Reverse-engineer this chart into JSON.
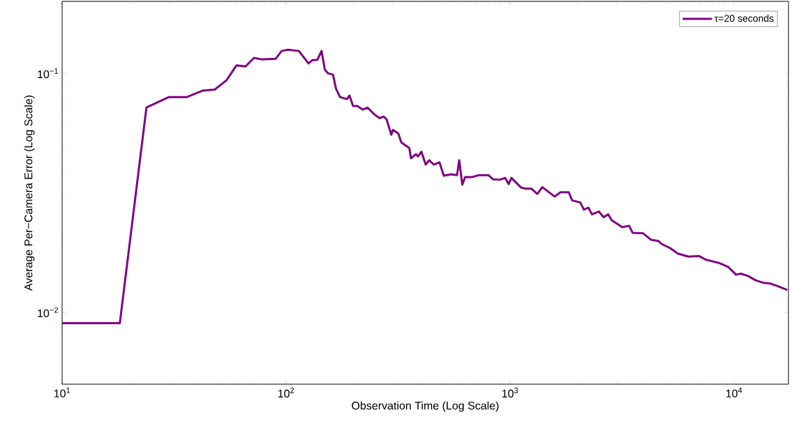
{
  "chart_data": {
    "type": "line",
    "xlabel": "Observation Time (Log Scale)",
    "ylabel": "Average Per−Camera Error (Log Scale)",
    "log": "xy",
    "legend": "top right",
    "xlim": [
      10,
      17500
    ],
    "ylim": [
      0.005,
      0.2
    ],
    "xticks": [
      {
        "value": 10,
        "label": "10$^{1}$"
      },
      {
        "value": 100,
        "label": "10$^{2}$"
      },
      {
        "value": 1000,
        "label": "10$^{3}$"
      },
      {
        "value": 10000,
        "label": "10$^{4}$"
      }
    ],
    "yticks": [
      {
        "value": 0.01,
        "label": "10$^{−2}$"
      },
      {
        "value": 0.1,
        "label": "10$^{−1}$"
      }
    ],
    "series": [
      {
        "name": "τ=20 seconds",
        "color": "#800080",
        "x": [
          10,
          18.1,
          23.8,
          30,
          36.1,
          42.3,
          48,
          54.2,
          60.1,
          65.9,
          71.9,
          77.8,
          89.8,
          95.5,
          102,
          114,
          126,
          131,
          138,
          144,
          149,
          154,
          162,
          167,
          174,
          187,
          192,
          199,
          208,
          220,
          231,
          248,
          261,
          273,
          281,
          295,
          300,
          317,
          327,
          343,
          355,
          361,
          380,
          388,
          402,
          420,
          436,
          456,
          484,
          506,
          546,
          580,
          593,
          612,
          630,
          678,
          728,
          800,
          840,
          902,
          951,
          986,
          1014,
          1119,
          1173,
          1245,
          1323,
          1393,
          1491,
          1581,
          1679,
          1828,
          1893,
          2059,
          2135,
          2239,
          2321,
          2493,
          2615,
          2742,
          2842,
          3165,
          3402,
          3526,
          3925,
          4266,
          4584,
          4755,
          5167,
          5620,
          6256,
          6960,
          7485,
          8535,
          9397,
          10210,
          10720,
          11520,
          12520,
          13460,
          14460,
          15530,
          17290
        ],
        "values": [
          0.009,
          0.009,
          0.072,
          0.0796,
          0.0796,
          0.0846,
          0.0855,
          0.0935,
          0.108,
          0.1069,
          0.116,
          0.1144,
          0.115,
          0.124,
          0.1256,
          0.124,
          0.11,
          0.1135,
          0.114,
          0.124,
          0.1035,
          0.1,
          0.0987,
          0.0863,
          0.0796,
          0.078,
          0.0807,
          0.073,
          0.073,
          0.0705,
          0.0719,
          0.0673,
          0.065,
          0.0659,
          0.0642,
          0.0553,
          0.058,
          0.056,
          0.0514,
          0.0498,
          0.0487,
          0.0441,
          0.0459,
          0.0449,
          0.047,
          0.0415,
          0.0433,
          0.0415,
          0.0424,
          0.0373,
          0.0378,
          0.0375,
          0.0433,
          0.0342,
          0.0368,
          0.0368,
          0.0375,
          0.0375,
          0.036,
          0.0359,
          0.0365,
          0.0344,
          0.0365,
          0.0333,
          0.0329,
          0.0329,
          0.0313,
          0.0334,
          0.0318,
          0.0305,
          0.0318,
          0.0318,
          0.0294,
          0.0288,
          0.0269,
          0.0274,
          0.0257,
          0.0264,
          0.025,
          0.0257,
          0.0243,
          0.0227,
          0.023,
          0.0215,
          0.0214,
          0.0201,
          0.0199,
          0.0193,
          0.0186,
          0.0176,
          0.0171,
          0.0172,
          0.0166,
          0.0161,
          0.0155,
          0.01437,
          0.0145,
          0.0142,
          0.0136,
          0.0133,
          0.0132,
          0.0129,
          0.0124
        ]
      }
    ]
  }
}
